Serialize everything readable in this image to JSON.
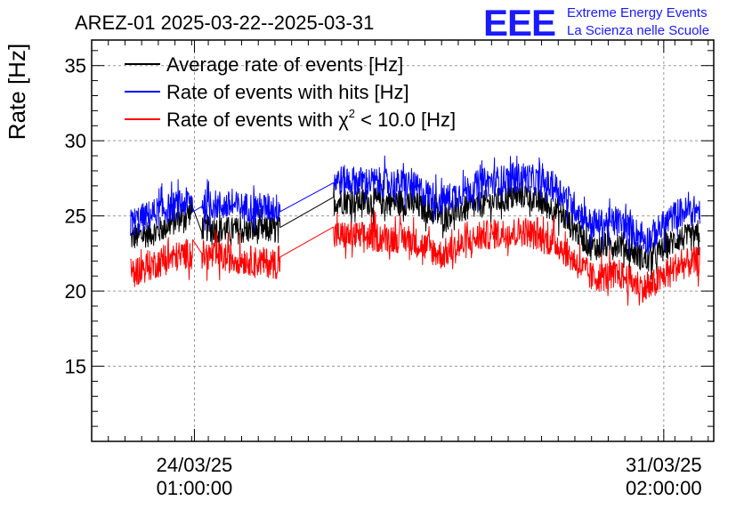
{
  "header": {
    "title": "AREZ-01 2025-03-22--2025-03-31",
    "logo_text": "EEE",
    "logo_line1": "Extreme Energy Events",
    "logo_line2": "La Scienza nelle Scuole"
  },
  "colors": {
    "black_series": "#000000",
    "blue_series": "#0000ff",
    "red_series": "#ff0000",
    "logo": "#1a1aff",
    "grid": "#999999"
  },
  "chart_data": {
    "type": "line",
    "ylabel": "Rate [Hz]",
    "ylim": [
      10,
      36.7
    ],
    "yticks": [
      15,
      20,
      25,
      30,
      35
    ],
    "xlim": [
      "2025-03-22T12:00",
      "2025-03-31T20:00"
    ],
    "xtick_labels": [
      {
        "x": "2025-03-24T01:00",
        "date": "24/03/25",
        "time": "01:00:00"
      },
      {
        "x": "2025-03-31T02:00",
        "date": "31/03/25",
        "time": "02:00:00"
      }
    ],
    "grid": true,
    "legend_position": "top-left",
    "series": [
      {
        "name": "Average rate of events [Hz]",
        "legend_label": "Average rate of events [Hz]",
        "color": "#000000",
        "x": [
          "2025-03-23T02:00",
          "2025-03-23T12:00",
          "2025-03-24T00:00",
          "2025-03-24T04:00",
          "2025-03-24T18:00",
          "2025-03-25T07:00",
          "2025-03-26T04:00",
          "2025-03-27T06:00",
          "2025-03-27T18:00",
          "2025-03-28T09:00",
          "2025-03-29T00:00",
          "2025-03-29T12:00",
          "2025-03-30T00:00",
          "2025-03-30T10:00",
          "2025-03-30T20:00",
          "2025-03-31T07:00",
          "2025-03-31T15:00"
        ],
        "y": [
          23.5,
          24.0,
          25.3,
          24.2,
          24.0,
          24.1,
          26.0,
          25.9,
          25.0,
          25.8,
          26.4,
          25.3,
          22.9,
          23.2,
          22.0,
          23.5,
          23.6
        ],
        "noise": 0.9
      },
      {
        "name": "Rate of events with hits [Hz]",
        "legend_label": "Rate of events with hits [Hz]",
        "color": "#0000ff",
        "x": [
          "2025-03-23T02:00",
          "2025-03-23T12:00",
          "2025-03-24T00:00",
          "2025-03-24T04:00",
          "2025-03-24T18:00",
          "2025-03-25T07:00",
          "2025-03-26T04:00",
          "2025-03-27T06:00",
          "2025-03-27T18:00",
          "2025-03-28T09:00",
          "2025-03-29T00:00",
          "2025-03-29T12:00",
          "2025-03-30T00:00",
          "2025-03-30T10:00",
          "2025-03-30T20:00",
          "2025-03-31T07:00",
          "2025-03-31T15:00"
        ],
        "y": [
          24.5,
          25.3,
          26.0,
          25.8,
          25.6,
          25.5,
          27.4,
          27.1,
          26.0,
          27.2,
          27.6,
          26.8,
          24.4,
          24.6,
          23.4,
          25.2,
          25.4
        ],
        "noise": 1.0
      },
      {
        "name": "Rate of events with chi2 < 10.0 [Hz]",
        "legend_label": "Rate of events with",
        "legend_chi": "χ",
        "legend_sup": "2",
        "legend_tail": " < 10.0 [Hz]",
        "color": "#ff0000",
        "x": [
          "2025-03-23T02:00",
          "2025-03-23T12:00",
          "2025-03-24T00:00",
          "2025-03-24T04:00",
          "2025-03-24T18:00",
          "2025-03-25T07:00",
          "2025-03-26T04:00",
          "2025-03-27T06:00",
          "2025-03-27T18:00",
          "2025-03-28T09:00",
          "2025-03-29T00:00",
          "2025-03-29T12:00",
          "2025-03-30T00:00",
          "2025-03-30T10:00",
          "2025-03-30T20:00",
          "2025-03-31T07:00",
          "2025-03-31T15:00"
        ],
        "y": [
          21.2,
          21.9,
          22.6,
          22.4,
          22.1,
          21.8,
          23.7,
          23.5,
          22.4,
          23.7,
          24.0,
          23.1,
          20.9,
          21.1,
          20.1,
          21.7,
          22.0
        ],
        "noise": 1.0
      }
    ],
    "gaps": [
      [
        "2025-03-24T00:30",
        "2025-03-24T03:30"
      ],
      [
        "2025-03-25T08:00",
        "2025-03-26T03:00"
      ]
    ]
  }
}
